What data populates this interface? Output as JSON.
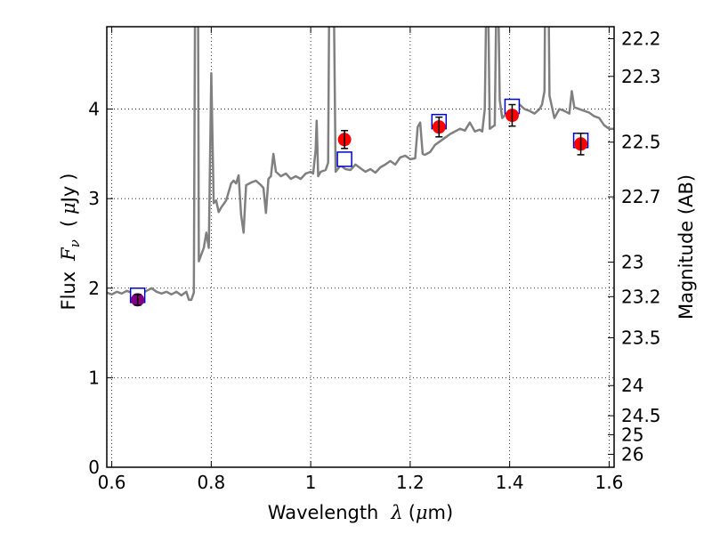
{
  "chart_data": {
    "type": "scatter",
    "xlabel": {
      "prefix": "Wavelength",
      "symbol": "λ",
      "unit_open": "(",
      "unit_mu": "μ",
      "unit_rest": "m)"
    },
    "ylabel": {
      "prefix": "Flux",
      "symbol": "F",
      "subscript": "ν",
      "unit_open": "(",
      "unit_mu": "μ",
      "unit_rest": "Jy",
      "unit_close": ")"
    },
    "y2label": "Magnitude (AB)",
    "xlim": [
      0.59,
      1.61
    ],
    "ylim": [
      0,
      4.92
    ],
    "x_ticks": [
      {
        "value": 0.6,
        "label": "0.6"
      },
      {
        "value": 0.8,
        "label": "0.8"
      },
      {
        "value": 1.0,
        "label": "1"
      },
      {
        "value": 1.2,
        "label": "1.2"
      },
      {
        "value": 1.4,
        "label": "1.4"
      },
      {
        "value": 1.6,
        "label": "1.6"
      }
    ],
    "y_ticks": [
      {
        "value": 0,
        "label": "0"
      },
      {
        "value": 1,
        "label": "1"
      },
      {
        "value": 2,
        "label": "2"
      },
      {
        "value": 3,
        "label": "3"
      },
      {
        "value": 4,
        "label": "4"
      }
    ],
    "y2_ticks": [
      {
        "value": 22.2,
        "label": "22.2"
      },
      {
        "value": 22.3,
        "label": "22.3"
      },
      {
        "value": 22.5,
        "label": "22.5"
      },
      {
        "value": 22.7,
        "label": "22.7"
      },
      {
        "value": 23.0,
        "label": "23"
      },
      {
        "value": 23.2,
        "label": "23.2"
      },
      {
        "value": 23.5,
        "label": "23.5"
      },
      {
        "value": 24.0,
        "label": "24"
      },
      {
        "value": 24.5,
        "label": "24.5"
      },
      {
        "value": 25.0,
        "label": "25"
      },
      {
        "value": 26.0,
        "label": "26"
      }
    ],
    "grid": true,
    "model_color": "#808080",
    "model_spectrum": [
      [
        0.59,
        1.95
      ],
      [
        0.6,
        1.93
      ],
      [
        0.61,
        1.96
      ],
      [
        0.62,
        1.94
      ],
      [
        0.63,
        1.97
      ],
      [
        0.64,
        1.95
      ],
      [
        0.65,
        1.96
      ],
      [
        0.66,
        1.94
      ],
      [
        0.67,
        1.97
      ],
      [
        0.68,
        2.0
      ],
      [
        0.69,
        1.96
      ],
      [
        0.7,
        1.94
      ],
      [
        0.71,
        1.96
      ],
      [
        0.72,
        1.93
      ],
      [
        0.73,
        1.96
      ],
      [
        0.74,
        1.92
      ],
      [
        0.75,
        1.96
      ],
      [
        0.755,
        1.87
      ],
      [
        0.76,
        1.87
      ],
      [
        0.765,
        1.95
      ],
      [
        0.768,
        6.0
      ],
      [
        0.773,
        6.0
      ],
      [
        0.775,
        2.3
      ],
      [
        0.785,
        2.45
      ],
      [
        0.79,
        2.62
      ],
      [
        0.795,
        2.45
      ],
      [
        0.8,
        4.4
      ],
      [
        0.805,
        2.95
      ],
      [
        0.81,
        2.98
      ],
      [
        0.815,
        2.85
      ],
      [
        0.82,
        2.9
      ],
      [
        0.83,
        2.98
      ],
      [
        0.84,
        3.17
      ],
      [
        0.845,
        3.2
      ],
      [
        0.85,
        3.17
      ],
      [
        0.855,
        3.26
      ],
      [
        0.86,
        2.82
      ],
      [
        0.865,
        2.62
      ],
      [
        0.87,
        3.15
      ],
      [
        0.88,
        3.18
      ],
      [
        0.89,
        3.2
      ],
      [
        0.9,
        3.15
      ],
      [
        0.905,
        3.12
      ],
      [
        0.91,
        2.84
      ],
      [
        0.915,
        3.22
      ],
      [
        0.92,
        3.25
      ],
      [
        0.925,
        3.5
      ],
      [
        0.93,
        3.3
      ],
      [
        0.94,
        3.25
      ],
      [
        0.95,
        3.28
      ],
      [
        0.96,
        3.22
      ],
      [
        0.97,
        3.25
      ],
      [
        0.98,
        3.22
      ],
      [
        0.99,
        3.28
      ],
      [
        1.0,
        3.3
      ],
      [
        1.005,
        3.28
      ],
      [
        1.01,
        3.55
      ],
      [
        1.012,
        3.87
      ],
      [
        1.015,
        3.25
      ],
      [
        1.02,
        3.3
      ],
      [
        1.03,
        3.32
      ],
      [
        1.035,
        3.4
      ],
      [
        1.038,
        6.0
      ],
      [
        1.045,
        6.0
      ],
      [
        1.05,
        3.3
      ],
      [
        1.06,
        3.37
      ],
      [
        1.07,
        3.33
      ],
      [
        1.08,
        3.32
      ],
      [
        1.09,
        3.38
      ],
      [
        1.1,
        3.34
      ],
      [
        1.11,
        3.3
      ],
      [
        1.12,
        3.33
      ],
      [
        1.13,
        3.29
      ],
      [
        1.14,
        3.35
      ],
      [
        1.15,
        3.38
      ],
      [
        1.16,
        3.42
      ],
      [
        1.17,
        3.38
      ],
      [
        1.18,
        3.46
      ],
      [
        1.19,
        3.48
      ],
      [
        1.2,
        3.44
      ],
      [
        1.21,
        3.45
      ],
      [
        1.215,
        3.8
      ],
      [
        1.22,
        3.85
      ],
      [
        1.225,
        3.5
      ],
      [
        1.23,
        3.49
      ],
      [
        1.24,
        3.52
      ],
      [
        1.25,
        3.6
      ],
      [
        1.26,
        3.64
      ],
      [
        1.27,
        3.68
      ],
      [
        1.28,
        3.72
      ],
      [
        1.29,
        3.75
      ],
      [
        1.3,
        3.78
      ],
      [
        1.31,
        3.76
      ],
      [
        1.32,
        3.85
      ],
      [
        1.325,
        3.8
      ],
      [
        1.33,
        3.75
      ],
      [
        1.34,
        3.77
      ],
      [
        1.345,
        3.75
      ],
      [
        1.35,
        4.0
      ],
      [
        1.355,
        6.0
      ],
      [
        1.36,
        3.78
      ],
      [
        1.365,
        3.8
      ],
      [
        1.37,
        3.82
      ],
      [
        1.375,
        6.0
      ],
      [
        1.38,
        4.1
      ],
      [
        1.385,
        3.9
      ],
      [
        1.39,
        3.93
      ],
      [
        1.4,
        3.98
      ],
      [
        1.41,
        4.02
      ],
      [
        1.42,
        4.05
      ],
      [
        1.43,
        4.0
      ],
      [
        1.44,
        3.98
      ],
      [
        1.45,
        3.95
      ],
      [
        1.46,
        4.0
      ],
      [
        1.465,
        4.05
      ],
      [
        1.47,
        4.2
      ],
      [
        1.472,
        6.0
      ],
      [
        1.477,
        6.0
      ],
      [
        1.48,
        4.15
      ],
      [
        1.49,
        3.9
      ],
      [
        1.5,
        4.0
      ],
      [
        1.51,
        3.98
      ],
      [
        1.52,
        3.95
      ],
      [
        1.525,
        4.2
      ],
      [
        1.53,
        4.02
      ],
      [
        1.54,
        4.0
      ],
      [
        1.55,
        3.98
      ],
      [
        1.56,
        3.96
      ],
      [
        1.57,
        3.92
      ],
      [
        1.58,
        3.9
      ],
      [
        1.59,
        3.82
      ],
      [
        1.6,
        3.78
      ],
      [
        1.61,
        3.78
      ]
    ],
    "model_photometry": {
      "color": "#0000cc",
      "points": [
        [
          0.652,
          1.92
        ],
        [
          1.068,
          3.44
        ],
        [
          1.258,
          3.86
        ],
        [
          1.405,
          4.03
        ],
        [
          1.543,
          3.65
        ]
      ]
    },
    "observed": {
      "color": "#ff0000",
      "points": [
        {
          "x": 0.652,
          "y": 1.87,
          "err": 0.06
        },
        {
          "x": 1.068,
          "y": 3.66,
          "err": 0.1
        },
        {
          "x": 1.258,
          "y": 3.8,
          "err": 0.11
        },
        {
          "x": 1.405,
          "y": 3.93,
          "err": 0.12
        },
        {
          "x": 1.543,
          "y": 3.61,
          "err": 0.12
        }
      ]
    },
    "overlap_color": "#800080"
  }
}
